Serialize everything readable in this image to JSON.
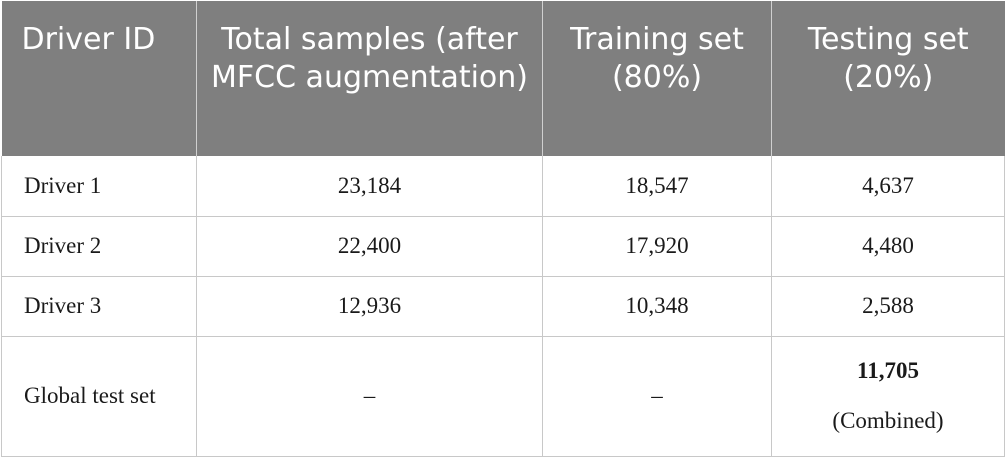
{
  "table": {
    "headers": [
      "Driver ID",
      "Total samples (after MFCC augmentation)",
      "Training set (80%)",
      "Testing set (20%)"
    ],
    "rows": [
      [
        "Driver 1",
        "23,184",
        "18,547",
        "4,637"
      ],
      [
        "Driver 2",
        "22,400",
        "17,920",
        "4,480"
      ],
      [
        "Driver 3",
        "12,936",
        "10,348",
        "2,588"
      ]
    ],
    "global": {
      "label": "Global test set",
      "total": "–",
      "training": "–",
      "testing_value": "11,705",
      "testing_note": "(Combined)"
    }
  },
  "colors": {
    "header_bg": "#7f7f7f",
    "header_text": "#ffffff",
    "grid": "#c8c8c8"
  }
}
